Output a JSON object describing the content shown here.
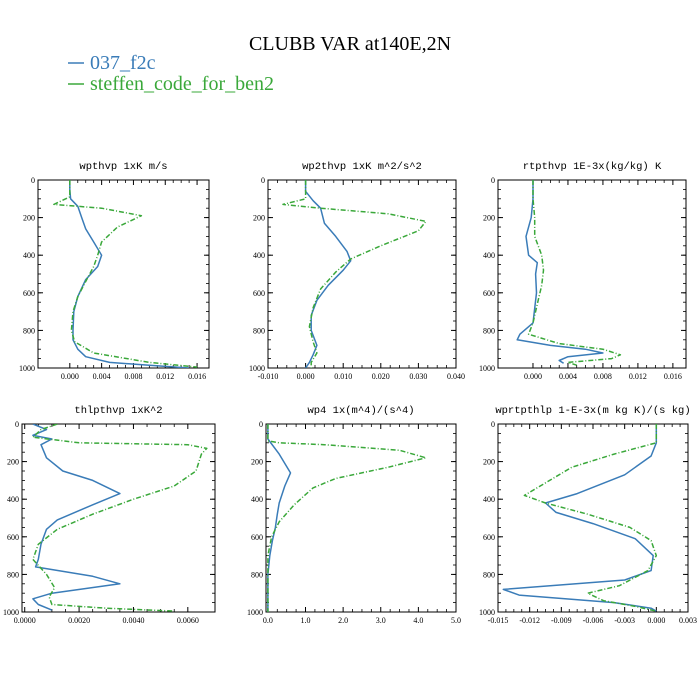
{
  "title": "CLUBB VAR at140E,2N",
  "legend": [
    {
      "label": "037_f2c",
      "color": "#3a7cb8"
    },
    {
      "label": "steffen_code_for_ben2",
      "color": "#3aa83a"
    }
  ],
  "chart_data": [
    {
      "type": "line",
      "title": "wpthvp   1xK m/s",
      "xlim": [
        -0.004,
        0.0175
      ],
      "ylim": [
        0,
        1000
      ],
      "y_inverted": true,
      "xticks": [
        0.0,
        0.004,
        0.008,
        0.012,
        0.016
      ],
      "xtick_labels": [
        "0.000",
        "0.004",
        "0.008",
        "0.012",
        "0.016"
      ],
      "yticks": [
        0,
        200,
        400,
        600,
        800,
        1000
      ],
      "ytick_labels": [
        "0",
        "200",
        "400",
        "600",
        "800",
        "1000"
      ],
      "series": [
        {
          "name": "037_f2c",
          "x": [
            0.0,
            0.0,
            0.0001,
            0.001,
            0.0015,
            0.002,
            0.003,
            0.004,
            0.0035,
            0.002,
            0.001,
            0.0005,
            0.0004,
            0.0004,
            0.001,
            0.002,
            0.005,
            0.01,
            0.015
          ],
          "y": [
            0,
            50,
            100,
            140,
            200,
            260,
            330,
            400,
            460,
            530,
            620,
            700,
            800,
            850,
            900,
            940,
            970,
            985,
            1000
          ]
        },
        {
          "name": "steffen_code_for_ben2",
          "x": [
            0.0,
            0.0,
            -0.002,
            0.004,
            0.009,
            0.006,
            0.004,
            0.0035,
            0.003,
            0.002,
            0.001,
            0.0004,
            0.0002,
            0.0006,
            0.003,
            0.01,
            0.016
          ],
          "y": [
            0,
            90,
            130,
            150,
            190,
            250,
            330,
            400,
            460,
            540,
            620,
            700,
            800,
            860,
            920,
            970,
            995
          ]
        }
      ]
    },
    {
      "type": "line",
      "title": "wp2thvp   1xK m^2/s^2",
      "xlim": [
        -0.01,
        0.04
      ],
      "ylim": [
        0,
        1000
      ],
      "y_inverted": true,
      "xticks": [
        -0.01,
        0.0,
        0.01,
        0.02,
        0.03,
        0.04
      ],
      "xtick_labels": [
        "-0.010",
        "0.000",
        "0.010",
        "0.020",
        "0.030",
        "0.040"
      ],
      "yticks": [
        0,
        200,
        400,
        600,
        800,
        1000
      ],
      "ytick_labels": [
        "0",
        "200",
        "400",
        "600",
        "800",
        "1000"
      ],
      "series": [
        {
          "name": "037_f2c",
          "x": [
            0.0,
            0.0,
            0.002,
            0.004,
            0.005,
            0.008,
            0.011,
            0.012,
            0.01,
            0.006,
            0.003,
            0.0015,
            0.0015,
            0.003,
            0.002,
            0.001,
            0.0
          ],
          "y": [
            0,
            60,
            110,
            150,
            230,
            300,
            380,
            430,
            480,
            560,
            640,
            720,
            800,
            880,
            930,
            970,
            1000
          ]
        },
        {
          "name": "steffen_code_for_ben2",
          "x": [
            0.0,
            0.0,
            -0.006,
            0.004,
            0.022,
            0.032,
            0.03,
            0.02,
            0.012,
            0.008,
            0.004,
            0.002,
            0.001,
            0.002,
            0.003,
            0.0015,
            0.0015
          ],
          "y": [
            0,
            100,
            130,
            150,
            180,
            220,
            270,
            350,
            420,
            490,
            580,
            680,
            780,
            860,
            920,
            970,
            1000
          ]
        }
      ]
    },
    {
      "type": "line",
      "title": "rtpthvp   1E-3x(kg/kg) K",
      "xlim": [
        -0.004,
        0.0175
      ],
      "ylim": [
        0,
        1000
      ],
      "y_inverted": true,
      "xticks": [
        0.0,
        0.004,
        0.008,
        0.012,
        0.016
      ],
      "xtick_labels": [
        "0.000",
        "0.004",
        "0.008",
        "0.012",
        "0.016"
      ],
      "yticks": [
        0,
        200,
        400,
        600,
        800,
        1000
      ],
      "ytick_labels": [
        "0",
        "200",
        "400",
        "600",
        "800",
        "1000"
      ],
      "series": [
        {
          "name": "037_f2c",
          "x": [
            0.0,
            0.0,
            -0.0002,
            -0.0008,
            -0.0005,
            0.0005,
            0.0003,
            0.0004,
            0.0,
            -0.0015,
            -0.0018,
            0.002,
            0.006,
            0.008,
            0.004,
            0.003,
            0.0035
          ],
          "y": [
            0,
            100,
            200,
            300,
            400,
            440,
            500,
            600,
            760,
            820,
            850,
            880,
            900,
            920,
            940,
            960,
            975
          ]
        },
        {
          "name": "steffen_code_for_ben2",
          "x": [
            0.0,
            0.0,
            0.0002,
            0.0002,
            0.001,
            0.0012,
            0.001,
            0.0005,
            0.0,
            -0.0005,
            0.003,
            0.008,
            0.01,
            0.009,
            0.004,
            0.005
          ],
          "y": [
            0,
            100,
            200,
            300,
            400,
            480,
            560,
            660,
            760,
            820,
            870,
            900,
            930,
            950,
            970,
            985
          ]
        }
      ]
    },
    {
      "type": "line",
      "title": "thlpthvp   1xK^2",
      "xlim": [
        -0.0001,
        0.007
      ],
      "ylim": [
        0,
        1000
      ],
      "y_inverted": true,
      "xticks": [
        0.0,
        0.002,
        0.004,
        0.006
      ],
      "xtick_labels": [
        "0.0000",
        "0.0020",
        "0.0040",
        "0.0060"
      ],
      "yticks": [
        0,
        200,
        400,
        600,
        800,
        1000
      ],
      "ytick_labels": [
        "0",
        "200",
        "400",
        "600",
        "800",
        "1000"
      ],
      "series": [
        {
          "name": "037_f2c",
          "x": [
            0.0003,
            0.0008,
            0.0003,
            0.001,
            0.0006,
            0.0008,
            0.0014,
            0.0025,
            0.0035,
            0.0025,
            0.0012,
            0.0008,
            0.0006,
            0.0005,
            0.0004,
            0.0025,
            0.0035,
            0.001,
            0.0003,
            0.0005,
            0.001
          ],
          "y": [
            0,
            30,
            60,
            80,
            110,
            180,
            250,
            300,
            370,
            430,
            510,
            560,
            640,
            720,
            760,
            810,
            850,
            900,
            930,
            960,
            990
          ]
        },
        {
          "name": "steffen_code_for_ben2",
          "x": [
            0.0012,
            0.0006,
            0.0003,
            0.002,
            0.006,
            0.0067,
            0.0065,
            0.0063,
            0.0055,
            0.004,
            0.0025,
            0.0012,
            0.0005,
            0.0003,
            0.0008,
            0.0011,
            0.0009,
            0.001,
            0.003,
            0.0055
          ],
          "y": [
            0,
            30,
            70,
            100,
            110,
            130,
            160,
            250,
            330,
            400,
            480,
            560,
            640,
            720,
            800,
            870,
            920,
            960,
            980,
            995
          ]
        }
      ]
    },
    {
      "type": "line",
      "title": "wp4   1x(m^4)/(s^4)",
      "xlim": [
        -0.05,
        5.0
      ],
      "ylim": [
        0,
        1000
      ],
      "y_inverted": true,
      "xticks": [
        0.0,
        1.0,
        2.0,
        3.0,
        4.0,
        5.0
      ],
      "xtick_labels": [
        "0.0",
        "1.0",
        "2.0",
        "3.0",
        "4.0",
        "5.0"
      ],
      "yticks": [
        0,
        200,
        400,
        600,
        800,
        1000
      ],
      "ytick_labels": [
        "0",
        "200",
        "400",
        "600",
        "800",
        "1000"
      ],
      "series": [
        {
          "name": "037_f2c",
          "x": [
            0.0,
            0.0,
            0.3,
            0.6,
            0.45,
            0.3,
            0.25,
            0.2,
            0.12,
            0.05,
            0.0,
            0.0
          ],
          "y": [
            0,
            80,
            160,
            260,
            330,
            420,
            480,
            550,
            620,
            700,
            800,
            1000
          ]
        },
        {
          "name": "steffen_code_for_ben2",
          "x": [
            0.0,
            0.0,
            0.3,
            1.5,
            3.5,
            4.2,
            3.2,
            1.8,
            1.2,
            0.7,
            0.3,
            0.1,
            0.0,
            0.0
          ],
          "y": [
            0,
            90,
            100,
            110,
            140,
            180,
            230,
            290,
            340,
            430,
            520,
            600,
            700,
            1000
          ]
        }
      ]
    },
    {
      "type": "line",
      "title": "wprtpthlp   1-E-3x(m kg K)/(s kg)",
      "xlim": [
        -0.015,
        0.003
      ],
      "ylim": [
        0,
        1000
      ],
      "y_inverted": true,
      "xticks": [
        -0.015,
        -0.012,
        -0.009,
        -0.006,
        -0.003,
        0.0,
        0.003
      ],
      "xtick_labels": [
        "-0.015",
        "-0.012",
        "-0.009",
        "-0.006",
        "-0.003",
        "0.000",
        "0.003"
      ],
      "yticks": [
        0,
        200,
        400,
        600,
        800,
        1000
      ],
      "ytick_labels": [
        "0",
        "200",
        "400",
        "600",
        "800",
        "1000"
      ],
      "series": [
        {
          "name": "037_f2c",
          "x": [
            0.0,
            0.0,
            -0.0005,
            -0.003,
            -0.0075,
            -0.0105,
            -0.0095,
            -0.006,
            -0.002,
            -0.0003,
            -0.0005,
            -0.003,
            -0.0145,
            -0.013,
            -0.004,
            -0.0005,
            0.0
          ],
          "y": [
            0,
            100,
            170,
            270,
            370,
            420,
            470,
            530,
            610,
            700,
            780,
            830,
            880,
            910,
            950,
            980,
            995
          ]
        },
        {
          "name": "steffen_code_for_ben2",
          "x": [
            0.0,
            0.0,
            -0.004,
            -0.008,
            -0.0125,
            -0.0105,
            -0.0065,
            -0.0025,
            -0.0005,
            0.0,
            -0.0008,
            -0.0035,
            -0.0065,
            -0.005,
            -0.002,
            0.0
          ],
          "y": [
            0,
            100,
            160,
            230,
            380,
            420,
            480,
            550,
            620,
            700,
            780,
            860,
            900,
            940,
            970,
            995
          ]
        }
      ]
    }
  ]
}
